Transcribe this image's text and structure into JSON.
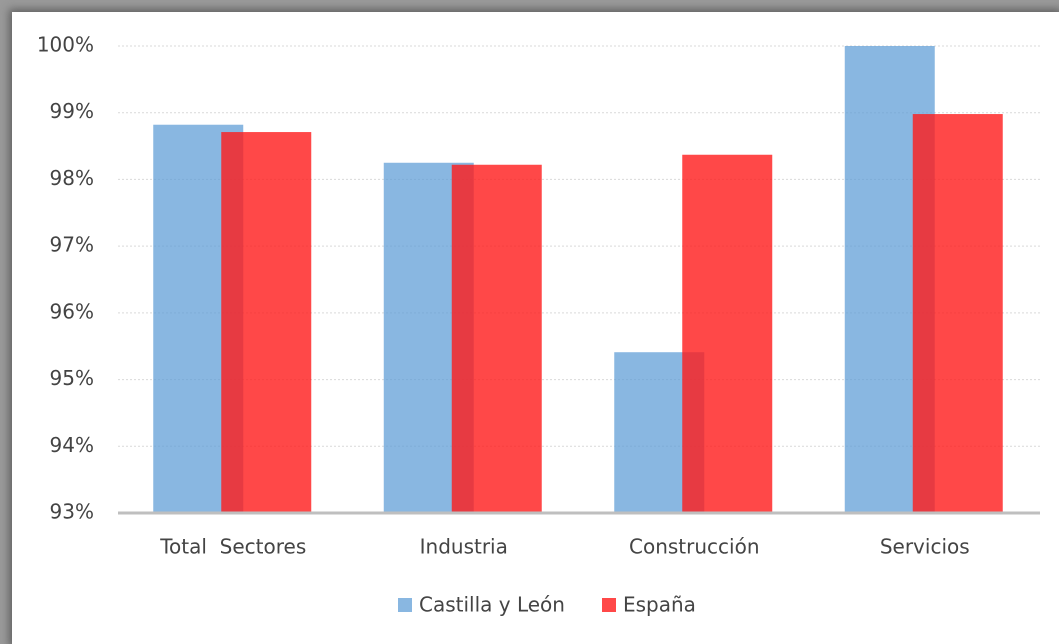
{
  "chart_data": {
    "type": "bar",
    "categories": [
      "Total  Sectores",
      "Industria",
      "Construcción",
      "Servicios"
    ],
    "series": [
      {
        "name": "Castilla y León",
        "color": "#5b9bd5",
        "values": [
          98.82,
          98.25,
          95.41,
          100.0
        ]
      },
      {
        "name": "España",
        "color": "#ff1a1a",
        "values": [
          98.71,
          98.22,
          98.37,
          98.98
        ]
      }
    ],
    "ylim": [
      93,
      100
    ],
    "yticks": [
      {
        "value": 93,
        "label": "93%"
      },
      {
        "value": 94,
        "label": "94%"
      },
      {
        "value": 95,
        "label": "95%"
      },
      {
        "value": 96,
        "label": "96%"
      },
      {
        "value": 97,
        "label": "97%"
      },
      {
        "value": 98,
        "label": "98%"
      },
      {
        "value": 99,
        "label": "99%"
      },
      {
        "value": 100,
        "label": "100%"
      }
    ],
    "grid": true,
    "legend": "bottom"
  }
}
